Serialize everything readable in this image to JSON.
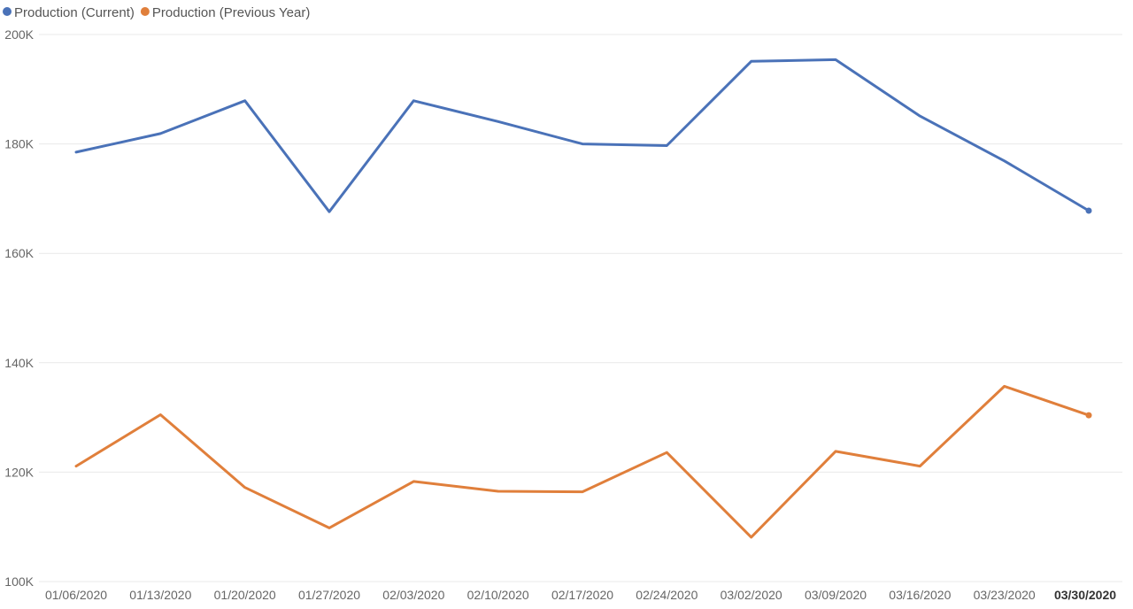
{
  "chart_data": {
    "type": "line",
    "title": "",
    "xlabel": "",
    "ylabel": "",
    "categories": [
      "01/06/2020",
      "01/13/2020",
      "01/20/2020",
      "01/27/2020",
      "02/03/2020",
      "02/10/2020",
      "02/17/2020",
      "02/24/2020",
      "03/02/2020",
      "03/09/2020",
      "03/16/2020",
      "03/23/2020",
      "03/30/2020"
    ],
    "highlight_category": "03/30/2020",
    "ylim": [
      100000,
      200000
    ],
    "yticks": [
      {
        "value": 100000,
        "label": "100K"
      },
      {
        "value": 120000,
        "label": "120K"
      },
      {
        "value": 140000,
        "label": "140K"
      },
      {
        "value": 160000,
        "label": "160K"
      },
      {
        "value": 180000,
        "label": "180K"
      },
      {
        "value": 200000,
        "label": "200K"
      }
    ],
    "grid": true,
    "legend_position": "top-left",
    "series": [
      {
        "name": "Production (Current)",
        "color": "#4a72b8",
        "values": [
          178500,
          181900,
          187900,
          167600,
          187900,
          184100,
          180000,
          179700,
          195100,
          195400,
          185100,
          176900,
          167800
        ]
      },
      {
        "name": "Production (Previous Year)",
        "color": "#e07f3b",
        "values": [
          121100,
          130500,
          117200,
          109800,
          118300,
          116500,
          116400,
          123600,
          108100,
          123800,
          121100,
          135700,
          130400
        ]
      }
    ]
  }
}
